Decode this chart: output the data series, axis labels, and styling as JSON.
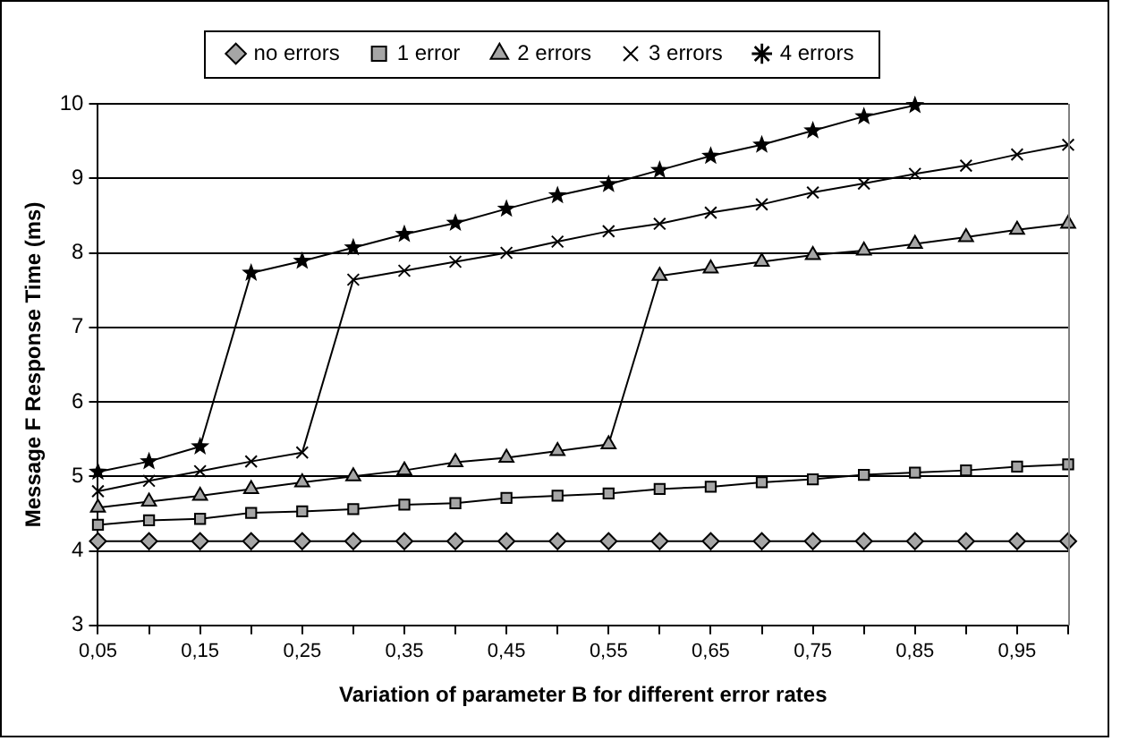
{
  "chart_data": {
    "type": "line",
    "xlabel": "Variation of parameter B for different error rates",
    "ylabel": "Message F Response Time (ms)",
    "categories": [
      "0,05",
      null,
      "0,15",
      null,
      "0,25",
      null,
      "0,35",
      null,
      "0,45",
      null,
      "0,55",
      null,
      "0,65",
      null,
      "0,75",
      null,
      "0,85",
      null,
      "0,95",
      null
    ],
    "ylim": [
      3,
      10
    ],
    "yticks": [
      3,
      4,
      5,
      6,
      7,
      8,
      9,
      10
    ],
    "grid": "y",
    "legend": "top",
    "series": [
      {
        "name": "no errors",
        "color": "#000000",
        "marker": "diamond",
        "values": [
          4.13,
          4.13,
          4.13,
          4.13,
          4.13,
          4.13,
          4.13,
          4.13,
          4.13,
          4.13,
          4.13,
          4.13,
          4.13,
          4.13,
          4.13,
          4.13,
          4.13,
          4.13,
          4.13,
          4.13
        ]
      },
      {
        "name": "1 error",
        "color": "#000000",
        "marker": "square",
        "values": [
          4.35,
          4.41,
          4.43,
          4.51,
          4.53,
          4.56,
          4.62,
          4.64,
          4.71,
          4.74,
          4.77,
          4.83,
          4.86,
          4.92,
          4.96,
          5.02,
          5.05,
          5.08,
          5.13,
          5.16
        ]
      },
      {
        "name": "2 errors",
        "color": "#000000",
        "marker": "triangle",
        "values": [
          4.58,
          4.66,
          4.74,
          4.83,
          4.92,
          5.0,
          5.08,
          5.19,
          5.25,
          5.34,
          5.43,
          7.69,
          7.79,
          7.88,
          7.97,
          8.03,
          8.12,
          8.21,
          8.31,
          8.39
        ]
      },
      {
        "name": "3 errors",
        "color": "#000000",
        "marker": "cross",
        "values": [
          4.8,
          4.94,
          5.07,
          5.2,
          5.32,
          7.64,
          7.76,
          7.88,
          8.0,
          8.15,
          8.29,
          8.39,
          8.54,
          8.65,
          8.81,
          8.93,
          9.06,
          9.17,
          9.32,
          9.45
        ]
      },
      {
        "name": "4 errors",
        "color": "#000000",
        "marker": "star",
        "values": [
          5.06,
          5.2,
          5.4,
          7.73,
          7.89,
          8.07,
          8.25,
          8.4,
          8.59,
          8.77,
          8.92,
          9.11,
          9.3,
          9.45,
          9.64,
          9.83,
          9.98,
          null,
          null,
          null
        ]
      }
    ]
  }
}
